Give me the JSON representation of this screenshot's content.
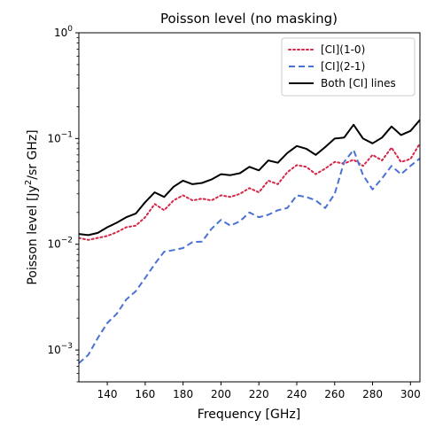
{
  "chart_data": {
    "type": "line",
    "title": "Poisson level (no masking)",
    "xlabel": "Frequency [GHz]",
    "ylabel": {
      "prefix": "Poisson level [Jy",
      "superscript": "2",
      "suffix": "/sr GHz]"
    },
    "xlim": [
      125,
      305
    ],
    "ylim": [
      0.0005,
      1
    ],
    "yscale": "log",
    "grid": false,
    "legend_position": "top-right",
    "xticks": [
      {
        "value": 140,
        "label": "140"
      },
      {
        "value": 160,
        "label": "160"
      },
      {
        "value": 180,
        "label": "180"
      },
      {
        "value": 200,
        "label": "200"
      },
      {
        "value": 220,
        "label": "220"
      },
      {
        "value": 240,
        "label": "240"
      },
      {
        "value": 260,
        "label": "260"
      },
      {
        "value": 280,
        "label": "280"
      },
      {
        "value": 300,
        "label": "300"
      }
    ],
    "yticks": [
      {
        "value": 0.001,
        "base": "10",
        "exp": "−3"
      },
      {
        "value": 0.01,
        "base": "10",
        "exp": "−2"
      },
      {
        "value": 0.1,
        "base": "10",
        "exp": "−1"
      },
      {
        "value": 1,
        "base": "10",
        "exp": "0"
      }
    ],
    "x": [
      125,
      130,
      135,
      140,
      145,
      150,
      155,
      160,
      165,
      170,
      175,
      180,
      185,
      190,
      195,
      200,
      205,
      210,
      215,
      220,
      225,
      230,
      235,
      240,
      245,
      250,
      255,
      260,
      265,
      270,
      275,
      280,
      285,
      290,
      295,
      300,
      305
    ],
    "series": [
      {
        "name": "[CI](1-0)",
        "color": "#d62748",
        "dash": "dotted",
        "values": [
          0.0115,
          0.011,
          0.0115,
          0.012,
          0.013,
          0.0145,
          0.015,
          0.018,
          0.024,
          0.021,
          0.026,
          0.029,
          0.026,
          0.027,
          0.026,
          0.029,
          0.028,
          0.03,
          0.034,
          0.031,
          0.04,
          0.037,
          0.048,
          0.056,
          0.054,
          0.046,
          0.052,
          0.06,
          0.058,
          0.063,
          0.055,
          0.07,
          0.062,
          0.082,
          0.06,
          0.064,
          0.09
        ]
      },
      {
        "name": "[CI](2-1)",
        "color": "#4a72d4",
        "dash": "dashed",
        "values": [
          0.00075,
          0.0009,
          0.0013,
          0.0018,
          0.0022,
          0.003,
          0.0036,
          0.0048,
          0.0065,
          0.0085,
          0.0088,
          0.0092,
          0.0105,
          0.0106,
          0.014,
          0.017,
          0.015,
          0.0165,
          0.02,
          0.018,
          0.019,
          0.021,
          0.022,
          0.029,
          0.028,
          0.026,
          0.022,
          0.03,
          0.06,
          0.078,
          0.045,
          0.033,
          0.042,
          0.055,
          0.046,
          0.055,
          0.065
        ]
      },
      {
        "name": "Both [CI] lines",
        "color": "#000000",
        "dash": "solid",
        "values": [
          0.0125,
          0.0122,
          0.0128,
          0.0145,
          0.016,
          0.018,
          0.0195,
          0.025,
          0.031,
          0.028,
          0.035,
          0.04,
          0.037,
          0.038,
          0.041,
          0.046,
          0.045,
          0.047,
          0.054,
          0.05,
          0.062,
          0.059,
          0.073,
          0.085,
          0.08,
          0.07,
          0.083,
          0.1,
          0.102,
          0.135,
          0.1,
          0.09,
          0.102,
          0.13,
          0.108,
          0.118,
          0.15
        ]
      }
    ]
  }
}
